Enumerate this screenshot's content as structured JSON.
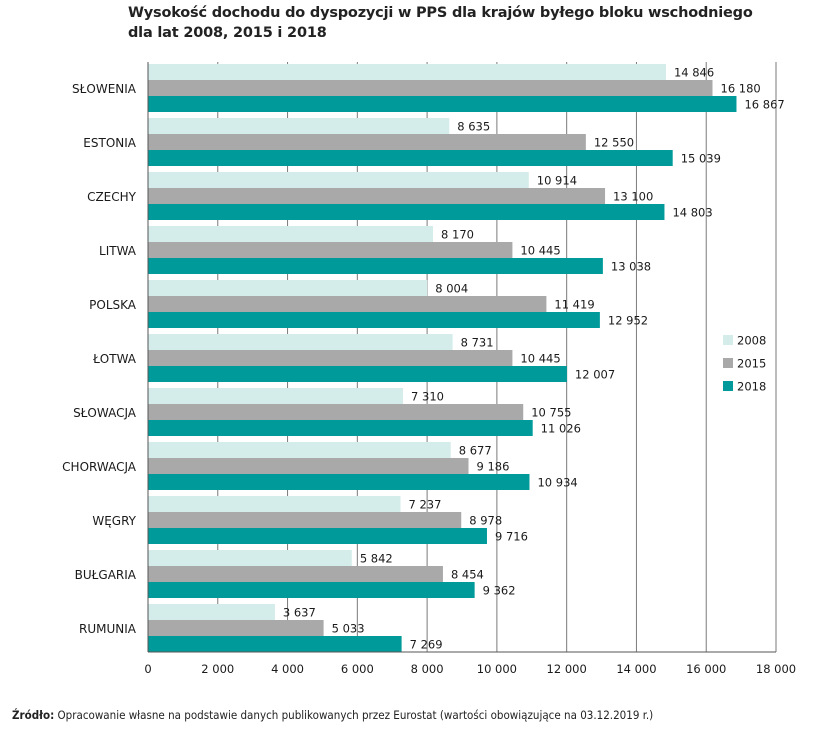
{
  "title_line1": "Wysokość dochodu do dyspozycji w PPS dla krajów byłego bloku wschodniego",
  "title_line2": "dla lat 2008, 2015 i 2018",
  "source_label": "Źródło:",
  "source_text": "Opracowanie własne na podstawie danych publikowanych przez Eurostat (wartości obowiązujące na 03.12.2019 r.)",
  "chart_data": {
    "type": "bar",
    "orientation": "horizontal",
    "title": "Wysokość dochodu do dyspozycji w PPS dla krajów byłego bloku wschodniego dla lat 2008, 2015 i 2018",
    "categories": [
      "SŁOWENIA",
      "ESTONIA",
      "CZECHY",
      "LITWA",
      "POLSKA",
      "ŁOTWA",
      "SŁOWACJA",
      "CHORWACJA",
      "WĘGRY",
      "BUŁGARIA",
      "RUMUNIA"
    ],
    "series": [
      {
        "name": "2008",
        "color": "#d4ecea",
        "values": [
          14846,
          8635,
          10914,
          8170,
          8004,
          8731,
          7310,
          8677,
          7237,
          5842,
          3637
        ],
        "labels": [
          "14 846",
          "8 635",
          "10 914",
          "8 170",
          "8 004",
          "8 731",
          "7 310",
          "8 677",
          "7 237",
          "5 842",
          "3 637"
        ]
      },
      {
        "name": "2015",
        "color": "#a9a9a9",
        "values": [
          16180,
          12550,
          13100,
          10445,
          11419,
          10445,
          10755,
          9186,
          8978,
          8454,
          5033
        ],
        "labels": [
          "16 180",
          "12 550",
          "13 100",
          "10 445",
          "11 419",
          "10 445",
          "10 755",
          "9 186",
          "8 978",
          "8 454",
          "5 033"
        ]
      },
      {
        "name": "2018",
        "color": "#009a9a",
        "values": [
          16867,
          15039,
          14803,
          13038,
          12952,
          12007,
          11026,
          10934,
          9716,
          9362,
          7269
        ],
        "labels": [
          "16 867",
          "15 039",
          "14 803",
          "13 038",
          "12 952",
          "12 007",
          "11 026",
          "10 934",
          "9 716",
          "9 362",
          "7 269"
        ]
      }
    ],
    "xlim": [
      0,
      18000
    ],
    "x_ticks": [
      0,
      2000,
      4000,
      6000,
      8000,
      10000,
      12000,
      14000,
      16000,
      18000
    ],
    "x_tick_labels": [
      "0",
      "2 000",
      "4 000",
      "6 000",
      "8 000",
      "10 000",
      "12 000",
      "14 000",
      "16 000",
      "18 000"
    ],
    "grid": true,
    "legend": "right"
  }
}
